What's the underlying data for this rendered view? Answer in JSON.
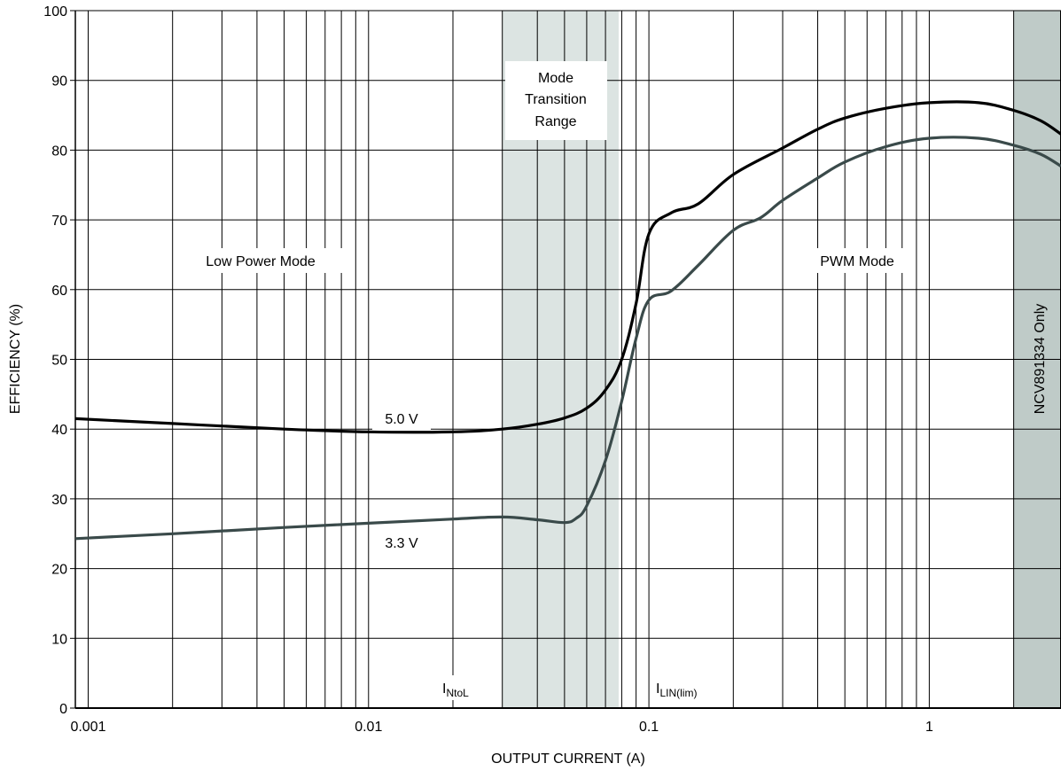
{
  "chart_data": {
    "type": "line",
    "x_scale": "log",
    "xlim": [
      0.0009,
      2.95
    ],
    "ylim": [
      0,
      100
    ],
    "xlabel": "OUTPUT CURRENT (A)",
    "ylabel": "EFFICIENCY (%)",
    "x_ticks": [
      0.001,
      0.01,
      0.1,
      1
    ],
    "x_tick_labels": [
      "0.001",
      "0.01",
      "0.1",
      "1"
    ],
    "y_ticks": [
      0,
      10,
      20,
      30,
      40,
      50,
      60,
      70,
      80,
      90,
      100
    ],
    "y_tick_labels": [
      "0",
      "10",
      "20",
      "30",
      "40",
      "50",
      "60",
      "70",
      "80",
      "90",
      "100"
    ],
    "grid": true,
    "series": [
      {
        "name": "5.0 V",
        "color": "#000000",
        "x": [
          0.0009,
          0.002,
          0.005,
          0.01,
          0.02,
          0.03,
          0.04,
          0.05,
          0.06,
          0.07,
          0.08,
          0.09,
          0.1,
          0.12,
          0.15,
          0.2,
          0.3,
          0.4,
          0.5,
          0.7,
          1.0,
          1.5,
          2.0,
          2.5,
          2.95
        ],
        "y": [
          41.5,
          40.8,
          40.0,
          39.6,
          39.6,
          40.0,
          40.7,
          41.6,
          43.0,
          45.6,
          50.0,
          58.0,
          68.0,
          71.0,
          72.3,
          76.5,
          80.3,
          83.0,
          84.6,
          86.0,
          86.8,
          86.8,
          85.7,
          84.2,
          82.3
        ]
      },
      {
        "name": "3.3 V",
        "color": "#3a4a4a",
        "x": [
          0.0009,
          0.002,
          0.005,
          0.01,
          0.02,
          0.03,
          0.04,
          0.05,
          0.055,
          0.06,
          0.07,
          0.08,
          0.09,
          0.1,
          0.12,
          0.15,
          0.2,
          0.25,
          0.3,
          0.4,
          0.5,
          0.7,
          1.0,
          1.5,
          2.0,
          2.5,
          2.95
        ],
        "y": [
          24.3,
          25.0,
          25.9,
          26.5,
          27.1,
          27.4,
          27.0,
          26.6,
          27.2,
          29.0,
          35.5,
          44.0,
          53.0,
          58.5,
          59.8,
          63.5,
          68.5,
          70.3,
          72.8,
          76.0,
          78.3,
          80.5,
          81.7,
          81.7,
          80.7,
          79.4,
          77.7
        ]
      }
    ],
    "shaded_regions": [
      {
        "x_start": 0.03,
        "x_end": 0.078,
        "color": "#dce4e2"
      },
      {
        "x_start": 2.0,
        "x_end": 2.95,
        "color": "#bfcbc8"
      }
    ],
    "annotations": {
      "low_power": "Low Power Mode",
      "transition": [
        "Mode",
        "Transition",
        "Range"
      ],
      "pwm": "PWM Mode",
      "ncv": "NCV891334 Only",
      "label_5v": "5.0 V",
      "label_33v": "3.3 V",
      "intol_main": "I",
      "intol_sub": "NtoL",
      "ilin_main": "I",
      "ilin_sub": "LIN(lim)"
    }
  }
}
